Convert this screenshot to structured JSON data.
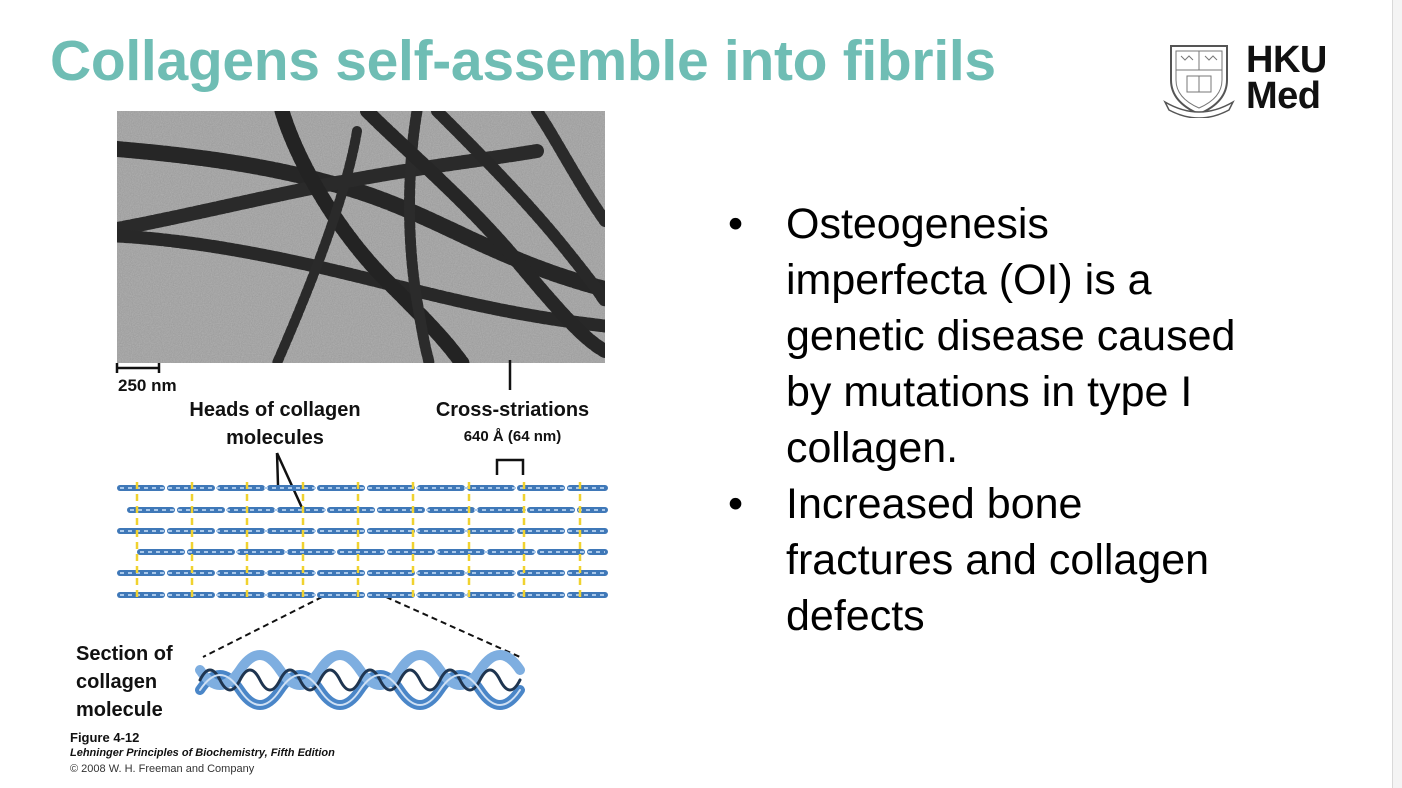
{
  "slide": {
    "title": "Collagens self-assemble into fibrils",
    "logo": {
      "line1": "HKU",
      "line2": "Med"
    },
    "bullets": [
      {
        "marker": "•",
        "text": "Osteogenesis imperfecta (OI) is a genetic disease caused by mutations in type I collagen."
      },
      {
        "marker": "•",
        "text": "Increased bone fractures and collagen defects"
      }
    ]
  },
  "figure": {
    "scale_bar": "250 nm",
    "heads_label": "Heads of collagen molecules",
    "cross_label": "Cross-striations",
    "period_label": "640 Å (64 nm)",
    "section_label": "Section of collagen molecule",
    "fig_number": "Figure 4-12",
    "book": "Lehninger Principles of Biochemistry, Fifth Edition",
    "copyright": "© 2008 W. H. Freeman and Company"
  },
  "colors": {
    "title": "#6fbdb4",
    "collagen": "#3f78b8",
    "collagen_light": "#a9c8ea",
    "striation": "#f0d230"
  },
  "icons": {
    "logo_crest": "university-crest-icon"
  }
}
